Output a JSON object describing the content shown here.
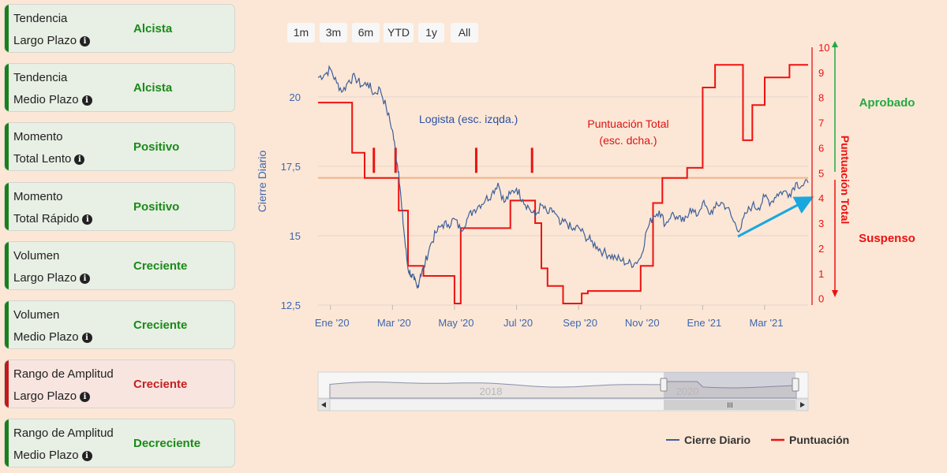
{
  "indicators": [
    {
      "line1": "Tendencia",
      "line2": "Largo Plazo",
      "value": "Alcista",
      "status": "green"
    },
    {
      "line1": "Tendencia",
      "line2": "Medio Plazo",
      "value": "Alcista",
      "status": "green"
    },
    {
      "line1": "Momento",
      "line2": "Total Lento",
      "value": "Positivo",
      "status": "green"
    },
    {
      "line1": "Momento",
      "line2": "Total Rápido",
      "value": "Positivo",
      "status": "green"
    },
    {
      "line1": "Volumen",
      "line2": "Largo Plazo",
      "value": "Creciente",
      "status": "green"
    },
    {
      "line1": "Volumen",
      "line2": "Medio Plazo",
      "value": "Creciente",
      "status": "green"
    },
    {
      "line1": "Rango de Amplitud",
      "line2": "Largo Plazo",
      "value": "Creciente",
      "status": "red"
    },
    {
      "line1": "Rango de Amplitud",
      "line2": "Medio Plazo",
      "value": "Decreciente",
      "status": "green"
    }
  ],
  "range_selector": [
    "1m",
    "3m",
    "6m",
    "YTD",
    "1y",
    "All"
  ],
  "colors": {
    "price": "#3d5f9a",
    "score": "#ee1111",
    "threshold": "#efb28a",
    "trend_arrow": "#1aa7e0",
    "approved": "#22aa44",
    "failed": "#ee1111"
  },
  "chart_data": {
    "type": "line",
    "title": "",
    "x_ticks": [
      "Ene '20",
      "Mar '20",
      "May '20",
      "Jul '20",
      "Sep '20",
      "Nov '20",
      "Ene '21",
      "Mar '21"
    ],
    "x_tick_months": [
      0,
      2,
      4,
      6,
      8,
      10,
      12,
      14
    ],
    "x_range_months": [
      -0.4,
      15.4
    ],
    "y_left": {
      "label": "Cierre Diario",
      "ticks": [
        "12,5",
        "15",
        "17,5",
        "20"
      ],
      "tick_values": [
        12.5,
        15,
        17.5,
        20
      ],
      "range": [
        12.5,
        21.5
      ]
    },
    "y_right": {
      "label": "Puntuación Total",
      "ticks": [
        "0",
        "1",
        "2",
        "3",
        "4",
        "5",
        "6",
        "7",
        "8",
        "9",
        "10"
      ],
      "range": [
        -0.2,
        10
      ]
    },
    "threshold_value": 4.8,
    "annotations": {
      "price_label": "Logista (esc. izqda.)",
      "score_label_1": "Puntuación Total",
      "score_label_2": "(esc. dcha.)",
      "approved": "Aprobado",
      "failed": "Suspenso"
    },
    "series": [
      {
        "name": "Cierre Diario",
        "axis": "left",
        "months": [
          -0.4,
          -0.2,
          0,
          0.2,
          0.4,
          0.6,
          0.8,
          1,
          1.2,
          1.4,
          1.6,
          1.8,
          2,
          2.1,
          2.2,
          2.3,
          2.4,
          2.5,
          2.6,
          2.7,
          2.8,
          2.9,
          3,
          3.2,
          3.4,
          3.6,
          3.8,
          4,
          4.2,
          4.4,
          4.6,
          4.8,
          5,
          5.2,
          5.4,
          5.6,
          5.8,
          6,
          6.2,
          6.4,
          6.6,
          6.8,
          7,
          7.2,
          7.4,
          7.6,
          7.8,
          8,
          8.2,
          8.4,
          8.6,
          8.8,
          9,
          9.2,
          9.4,
          9.6,
          9.8,
          10,
          10.2,
          10.4,
          10.6,
          10.8,
          11,
          11.2,
          11.4,
          11.6,
          11.8,
          12,
          12.2,
          12.4,
          12.6,
          12.8,
          13,
          13.2,
          13.4,
          13.6,
          13.8,
          14,
          14.2,
          14.4,
          14.6,
          14.8,
          15,
          15.2,
          15.4
        ],
        "values": [
          20.7,
          20.8,
          21.0,
          20.5,
          20.2,
          20.6,
          20.7,
          20.4,
          20.5,
          20.1,
          20.3,
          19.6,
          18.8,
          18.0,
          17.3,
          16.0,
          14.8,
          13.8,
          13.6,
          13.4,
          13.1,
          13.6,
          13.8,
          14.6,
          15.1,
          15.4,
          15.4,
          15.6,
          15.2,
          15.6,
          15.9,
          16.1,
          16.3,
          16.5,
          16.9,
          16.2,
          16.5,
          16.7,
          16.3,
          16.0,
          15.7,
          16.1,
          15.8,
          15.9,
          15.4,
          15.5,
          15.2,
          15.3,
          15.0,
          14.8,
          14.6,
          14.4,
          14.3,
          14.2,
          14.1,
          14.0,
          14.0,
          14.2,
          15.2,
          15.7,
          15.9,
          15.4,
          15.8,
          15.6,
          15.5,
          16.0,
          15.7,
          16.2,
          15.8,
          16.0,
          16.2,
          16.0,
          15.5,
          15.2,
          15.8,
          16.1,
          16.0,
          16.4,
          16.2,
          16.5,
          16.6,
          16.5,
          16.9,
          16.8,
          16.9
        ]
      },
      {
        "name": "Puntuación",
        "axis": "right",
        "months": [
          -0.4,
          0.7,
          0.7,
          1.1,
          1.1,
          2.2,
          2.2,
          2.5,
          2.5,
          3.0,
          3.0,
          4.0,
          4.0,
          4.2,
          4.2,
          5.2,
          5.2,
          5.8,
          5.8,
          6.6,
          6.6,
          6.8,
          6.8,
          7.0,
          7.0,
          7.5,
          7.5,
          8.1,
          8.1,
          8.3,
          8.3,
          10.0,
          10.0,
          10.4,
          10.4,
          10.7,
          10.7,
          11.5,
          11.5,
          12.0,
          12.0,
          12.4,
          12.4,
          13.3,
          13.3,
          13.6,
          13.6,
          14.0,
          14.0,
          14.8,
          14.8,
          15.4
        ],
        "values": [
          7.8,
          7.8,
          5.8,
          5.8,
          4.8,
          4.8,
          3.5,
          3.5,
          1.3,
          1.3,
          0.9,
          0.9,
          -0.2,
          -0.2,
          2.8,
          2.8,
          2.8,
          2.8,
          3.9,
          3.9,
          3.0,
          3.0,
          1.2,
          1.2,
          0.5,
          0.5,
          -0.2,
          -0.2,
          0.2,
          0.2,
          0.3,
          0.3,
          1.3,
          1.3,
          3.8,
          3.8,
          4.8,
          4.8,
          5.2,
          5.2,
          8.4,
          8.4,
          9.3,
          9.3,
          6.3,
          6.3,
          7.7,
          7.7,
          8.8,
          8.8,
          9.3,
          9.3
        ]
      }
    ],
    "score_spikes_months": [
      1.4,
      2.1,
      4.7,
      6.5
    ],
    "navigator": {
      "year_labels": [
        "2018",
        "2020"
      ],
      "scroll_thumb": "III"
    },
    "legend": [
      "Cierre Diario",
      "Puntuación"
    ]
  }
}
